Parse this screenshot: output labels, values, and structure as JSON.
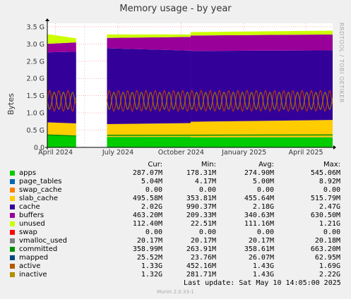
{
  "chart_data": {
    "type": "area",
    "title": "Memory usage - by year",
    "ylabel": "Bytes",
    "ylim": [
      0,
      3.6
    ],
    "y_unit": "G",
    "yticks": [
      "0.0",
      "0.5 G",
      "1.0 G",
      "1.5 G",
      "2.0 G",
      "2.5 G",
      "3.0 G",
      "3.5 G"
    ],
    "yticks_values": [
      0,
      0.5,
      1.0,
      1.5,
      2.0,
      2.5,
      3.0,
      3.5
    ],
    "x_ticks": [
      {
        "label": "April 2024",
        "date": "2024-04-01"
      },
      {
        "label": "July 2024",
        "date": "2024-07-01"
      },
      {
        "label": "October 2024",
        "date": "2024-10-01"
      },
      {
        "label": "January 2025",
        "date": "2025-01-01"
      },
      {
        "label": "April 2025",
        "date": "2025-04-01"
      }
    ],
    "x_range": [
      "2024-03-20",
      "2025-05-10"
    ],
    "gap": [
      "2024-05-01",
      "2024-06-15"
    ],
    "grid": true,
    "stacked_series": [
      {
        "name": "apps",
        "color": "#00cc00",
        "segments": [
          [
            0.37,
            0.34
          ],
          [
            0.3,
            0.3
          ],
          [
            0.29,
            0.29
          ]
        ]
      },
      {
        "name": "page_tables",
        "color": "#0066b3",
        "segments": [
          [
            0.005,
            0.005
          ],
          [
            0.005,
            0.005
          ],
          [
            0.005,
            0.005
          ]
        ]
      },
      {
        "name": "swap_cache",
        "color": "#ff8000",
        "segments": [
          [
            0,
            0
          ],
          [
            0,
            0
          ],
          [
            0,
            0
          ]
        ]
      },
      {
        "name": "slab_cache",
        "color": "#ffcc00",
        "segments": [
          [
            0.35,
            0.35
          ],
          [
            0.37,
            0.4
          ],
          [
            0.45,
            0.5
          ]
        ]
      },
      {
        "name": "cache",
        "color": "#330099",
        "segments": [
          [
            2.03,
            2.08
          ],
          [
            2.2,
            2.1
          ],
          [
            2.05,
            2.02
          ]
        ]
      },
      {
        "name": "buffers",
        "color": "#990099",
        "segments": [
          [
            0.25,
            0.27
          ],
          [
            0.3,
            0.4
          ],
          [
            0.45,
            0.46
          ]
        ]
      },
      {
        "name": "unused",
        "color": "#ccff00",
        "segments": [
          [
            0.28,
            0.12
          ],
          [
            0.1,
            0.07
          ],
          [
            0.1,
            0.11
          ]
        ]
      }
    ],
    "segment_dates": [
      [
        "2024-03-20",
        "2024-05-01"
      ],
      [
        "2024-06-15",
        "2024-10-15"
      ],
      [
        "2024-10-15",
        "2025-05-10"
      ]
    ],
    "line_series": [
      {
        "name": "committed",
        "color": "#008f00",
        "values_approx": [
          0.36,
          0.33,
          0.35,
          0.36
        ]
      },
      {
        "name": "active",
        "color": "#c04000",
        "range_approx": [
          1.05,
          1.65
        ]
      },
      {
        "name": "inactive",
        "color": "#a08000",
        "range_approx": [
          1.1,
          1.6
        ]
      }
    ]
  },
  "legend": {
    "headers": {
      "cur": "Cur:",
      "min": "Min:",
      "avg": "Avg:",
      "max": "Max:"
    },
    "rows": [
      {
        "name": "apps",
        "color": "#00cc00",
        "cur": "287.07M",
        "min": "178.31M",
        "avg": "274.90M",
        "max": "545.06M"
      },
      {
        "name": "page_tables",
        "color": "#0066b3",
        "cur": "5.04M",
        "min": "4.17M",
        "avg": "5.00M",
        "max": "8.92M"
      },
      {
        "name": "swap_cache",
        "color": "#ff8000",
        "cur": "0.00",
        "min": "0.00",
        "avg": "0.00",
        "max": "0.00"
      },
      {
        "name": "slab_cache",
        "color": "#ffcc00",
        "cur": "495.58M",
        "min": "353.81M",
        "avg": "455.64M",
        "max": "515.79M"
      },
      {
        "name": "cache",
        "color": "#330099",
        "cur": "2.02G",
        "min": "990.37M",
        "avg": "2.18G",
        "max": "2.47G"
      },
      {
        "name": "buffers",
        "color": "#990099",
        "cur": "463.20M",
        "min": "209.33M",
        "avg": "340.63M",
        "max": "630.50M"
      },
      {
        "name": "unused",
        "color": "#ccff00",
        "cur": "112.40M",
        "min": "22.51M",
        "avg": "111.16M",
        "max": "1.21G"
      },
      {
        "name": "swap",
        "color": "#ff0000",
        "cur": "0.00",
        "min": "0.00",
        "avg": "0.00",
        "max": "0.00"
      },
      {
        "name": "vmalloc_used",
        "color": "#808080",
        "cur": "20.17M",
        "min": "20.17M",
        "avg": "20.17M",
        "max": "20.18M"
      },
      {
        "name": "committed",
        "color": "#008f00",
        "cur": "358.99M",
        "min": "263.91M",
        "avg": "358.61M",
        "max": "663.20M"
      },
      {
        "name": "mapped",
        "color": "#00487d",
        "cur": "25.52M",
        "min": "23.76M",
        "avg": "26.07M",
        "max": "62.95M"
      },
      {
        "name": "active",
        "color": "#b35a00",
        "cur": "1.33G",
        "min": "452.16M",
        "avg": "1.43G",
        "max": "1.69G"
      },
      {
        "name": "inactive",
        "color": "#b38f00",
        "cur": "1.32G",
        "min": "281.71M",
        "avg": "1.43G",
        "max": "2.22G"
      }
    ]
  },
  "footer": {
    "last_update": "Last update:  Sat May 10 14:05:00 2025",
    "version": "Munin 2.0.33-1"
  },
  "watermark": "RRDTOOL / TOBI OETIKER"
}
